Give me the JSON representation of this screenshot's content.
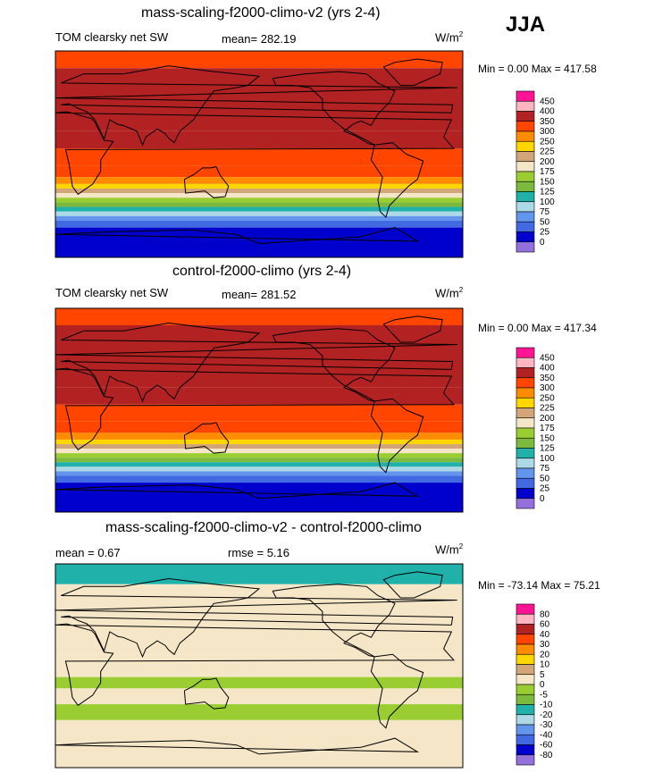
{
  "season": "JJA",
  "units_text": "W/m",
  "units_exp": "2",
  "chart_data": [
    {
      "type": "heatmap",
      "title": "mass-scaling-f2000-climo-v2 (yrs 2-4)",
      "variable": "TOM clearsky net SW",
      "mean_label": "mean= 282.19",
      "minmax_label": "Min =   0.00 Max = 417.58",
      "min": 0.0,
      "max": 417.58,
      "mean": 282.19,
      "levels": [
        "450",
        "400",
        "350",
        "300",
        "250",
        "225",
        "200",
        "175",
        "150",
        "125",
        "100",
        "75",
        "50",
        "25",
        "0"
      ],
      "colors": [
        "#ff1493",
        "#ffb6c1",
        "#b22222",
        "#ff4500",
        "#ff8c00",
        "#ffd700",
        "#d2a679",
        "#f5e6c8",
        "#9acd32",
        "#7cba3e",
        "#20b2aa",
        "#add8e6",
        "#6495ed",
        "#4169e1",
        "#0000cd",
        "#9370db"
      ],
      "bands": [
        {
          "lat_from": 90,
          "lat_to": 75,
          "value": 300
        },
        {
          "lat_from": 75,
          "lat_to": 60,
          "value": 350
        },
        {
          "lat_from": 60,
          "lat_to": 20,
          "value": 380
        },
        {
          "lat_from": 20,
          "lat_to": 5,
          "value": 360
        },
        {
          "lat_from": 5,
          "lat_to": -10,
          "value": 340
        },
        {
          "lat_from": -10,
          "lat_to": -20,
          "value": 310
        },
        {
          "lat_from": -20,
          "lat_to": -26,
          "value": 260
        },
        {
          "lat_from": -26,
          "lat_to": -30,
          "value": 230
        },
        {
          "lat_from": -30,
          "lat_to": -34,
          "value": 210
        },
        {
          "lat_from": -34,
          "lat_to": -38,
          "value": 185
        },
        {
          "lat_from": -38,
          "lat_to": -42,
          "value": 160
        },
        {
          "lat_from": -42,
          "lat_to": -46,
          "value": 135
        },
        {
          "lat_from": -46,
          "lat_to": -50,
          "value": 110
        },
        {
          "lat_from": -50,
          "lat_to": -54,
          "value": 85
        },
        {
          "lat_from": -54,
          "lat_to": -58,
          "value": 60
        },
        {
          "lat_from": -58,
          "lat_to": -64,
          "value": 35
        },
        {
          "lat_from": -64,
          "lat_to": -90,
          "value": 10
        }
      ]
    },
    {
      "type": "heatmap",
      "title": "control-f2000-climo (yrs 2-4)",
      "variable": "TOM clearsky net SW",
      "mean_label": "mean= 281.52",
      "minmax_label": "Min =   0.00 Max = 417.34",
      "min": 0.0,
      "max": 417.34,
      "mean": 281.52,
      "levels": [
        "450",
        "400",
        "350",
        "300",
        "250",
        "225",
        "200",
        "175",
        "150",
        "125",
        "100",
        "75",
        "50",
        "25",
        "0"
      ],
      "colors": [
        "#ff1493",
        "#ffb6c1",
        "#b22222",
        "#ff4500",
        "#ff8c00",
        "#ffd700",
        "#d2a679",
        "#f5e6c8",
        "#9acd32",
        "#7cba3e",
        "#20b2aa",
        "#add8e6",
        "#6495ed",
        "#4169e1",
        "#0000cd",
        "#9370db"
      ],
      "bands": [
        {
          "lat_from": 90,
          "lat_to": 75,
          "value": 300
        },
        {
          "lat_from": 75,
          "lat_to": 60,
          "value": 350
        },
        {
          "lat_from": 60,
          "lat_to": 20,
          "value": 380
        },
        {
          "lat_from": 20,
          "lat_to": 5,
          "value": 360
        },
        {
          "lat_from": 5,
          "lat_to": -10,
          "value": 340
        },
        {
          "lat_from": -10,
          "lat_to": -20,
          "value": 310
        },
        {
          "lat_from": -20,
          "lat_to": -26,
          "value": 260
        },
        {
          "lat_from": -26,
          "lat_to": -30,
          "value": 230
        },
        {
          "lat_from": -30,
          "lat_to": -34,
          "value": 210
        },
        {
          "lat_from": -34,
          "lat_to": -38,
          "value": 185
        },
        {
          "lat_from": -38,
          "lat_to": -42,
          "value": 160
        },
        {
          "lat_from": -42,
          "lat_to": -46,
          "value": 135
        },
        {
          "lat_from": -46,
          "lat_to": -50,
          "value": 110
        },
        {
          "lat_from": -50,
          "lat_to": -54,
          "value": 85
        },
        {
          "lat_from": -54,
          "lat_to": -58,
          "value": 60
        },
        {
          "lat_from": -58,
          "lat_to": -64,
          "value": 35
        },
        {
          "lat_from": -64,
          "lat_to": -90,
          "value": 10
        }
      ]
    },
    {
      "type": "heatmap",
      "title": "mass-scaling-f2000-climo-v2 - control-f2000-climo",
      "mean_label": "mean =   0.67",
      "rmse_label": "rmse =   5.16",
      "minmax_label": "Min = -73.14 Max =  75.21",
      "min": -73.14,
      "max": 75.21,
      "mean": 0.67,
      "rmse": 5.16,
      "levels": [
        "80",
        "60",
        "40",
        "30",
        "20",
        "10",
        "5",
        "0",
        "-5",
        "-10",
        "-20",
        "-30",
        "-40",
        "-60",
        "-80"
      ],
      "colors": [
        "#ff1493",
        "#ffb6c1",
        "#b22222",
        "#ff4500",
        "#ff8c00",
        "#ffd700",
        "#d2a679",
        "#f5e6c8",
        "#9acd32",
        "#7cba3e",
        "#20b2aa",
        "#add8e6",
        "#6495ed",
        "#4169e1",
        "#0000cd",
        "#9370db"
      ],
      "bands": [
        {
          "lat_from": 90,
          "lat_to": 72,
          "value": -12
        },
        {
          "lat_from": 72,
          "lat_to": 64,
          "value": 2
        },
        {
          "lat_from": 64,
          "lat_to": 30,
          "value": 2
        },
        {
          "lat_from": 30,
          "lat_to": 10,
          "value": 2
        },
        {
          "lat_from": 10,
          "lat_to": -10,
          "value": 2
        },
        {
          "lat_from": -10,
          "lat_to": -20,
          "value": -3
        },
        {
          "lat_from": -20,
          "lat_to": -34,
          "value": 2
        },
        {
          "lat_from": -34,
          "lat_to": -48,
          "value": -3
        },
        {
          "lat_from": -48,
          "lat_to": -90,
          "value": 2
        }
      ]
    }
  ]
}
